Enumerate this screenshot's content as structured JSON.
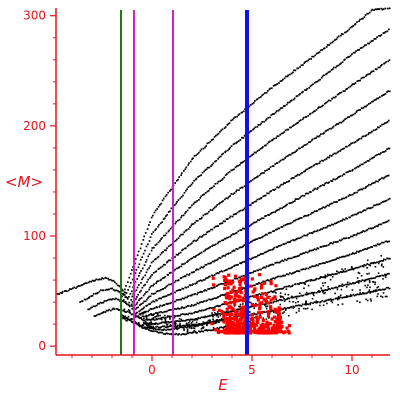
{
  "chart_data": {
    "type": "scatter",
    "title": "",
    "xlabel": "E",
    "ylabel": "<M>",
    "xlim": [
      -4.8,
      11.9
    ],
    "ylim": [
      -8,
      307
    ],
    "x_ticks": [
      0,
      5,
      10
    ],
    "x_tick_labels": [
      "0",
      "5",
      "10"
    ],
    "y_ticks": [
      0,
      100,
      200,
      300
    ],
    "y_tick_labels": [
      "0",
      "100",
      "200",
      "300"
    ],
    "grid": false,
    "legend": "none",
    "colors": {
      "axis": "#e8141b",
      "points": "#000000",
      "highlight": "#ff0000",
      "line_green": "#1a7a1a",
      "line_magenta": "#cc22cc",
      "line_blue": "#1010e8"
    },
    "vertical_lines": [
      {
        "x": -1.55,
        "color": "#1a7a1a",
        "width": 2
      },
      {
        "x": -0.9,
        "color": "#cc22cc",
        "width": 2
      },
      {
        "x": 1.05,
        "color": "#cc22cc",
        "width": 2
      },
      {
        "x": 4.75,
        "color": "#1010e8",
        "width": 4
      }
    ],
    "curves": [
      {
        "points": [
          [
            -1.5,
            45
          ],
          [
            0,
            118
          ],
          [
            2,
            170
          ],
          [
            4,
            205
          ],
          [
            6,
            235
          ],
          [
            8,
            262
          ],
          [
            10,
            290
          ],
          [
            11,
            305
          ],
          [
            11.9,
            307
          ]
        ]
      },
      {
        "points": [
          [
            -1.4,
            42
          ],
          [
            0,
            102
          ],
          [
            2,
            148
          ],
          [
            4,
            182
          ],
          [
            6,
            210
          ],
          [
            8,
            237
          ],
          [
            10,
            265
          ],
          [
            11.9,
            288
          ]
        ]
      },
      {
        "points": [
          [
            -1.3,
            40
          ],
          [
            0,
            88
          ],
          [
            2,
            128
          ],
          [
            4,
            160
          ],
          [
            6,
            187
          ],
          [
            8,
            212
          ],
          [
            10,
            237
          ],
          [
            11.9,
            260
          ]
        ]
      },
      {
        "points": [
          [
            -1.2,
            38
          ],
          [
            0,
            76
          ],
          [
            2,
            110
          ],
          [
            4,
            138
          ],
          [
            6,
            163
          ],
          [
            8,
            187
          ],
          [
            10,
            210
          ],
          [
            11.9,
            232
          ]
        ]
      },
      {
        "points": [
          [
            -1.1,
            36
          ],
          [
            0,
            65
          ],
          [
            2,
            94
          ],
          [
            4,
            118
          ],
          [
            6,
            141
          ],
          [
            8,
            163
          ],
          [
            10,
            184
          ],
          [
            11.9,
            205
          ]
        ]
      },
      {
        "points": [
          [
            -1.0,
            34
          ],
          [
            0,
            55
          ],
          [
            2,
            80
          ],
          [
            4,
            101
          ],
          [
            6,
            121
          ],
          [
            8,
            141
          ],
          [
            10,
            160
          ],
          [
            11.9,
            180
          ]
        ]
      },
      {
        "points": [
          [
            -0.9,
            32
          ],
          [
            0,
            47
          ],
          [
            2,
            67
          ],
          [
            4,
            86
          ],
          [
            6,
            104
          ],
          [
            8,
            121
          ],
          [
            10,
            138
          ],
          [
            11.9,
            156
          ]
        ]
      },
      {
        "points": [
          [
            -0.8,
            30
          ],
          [
            0,
            40
          ],
          [
            2,
            56
          ],
          [
            4,
            72
          ],
          [
            6,
            88
          ],
          [
            8,
            103
          ],
          [
            10,
            118
          ],
          [
            11.9,
            134
          ]
        ]
      },
      {
        "points": [
          [
            -0.7,
            28
          ],
          [
            0,
            34
          ],
          [
            2,
            46
          ],
          [
            4,
            60
          ],
          [
            6,
            74
          ],
          [
            8,
            87
          ],
          [
            10,
            100
          ],
          [
            11.9,
            114
          ]
        ]
      },
      {
        "points": [
          [
            -0.6,
            26
          ],
          [
            0,
            29
          ],
          [
            2,
            37
          ],
          [
            4,
            49
          ],
          [
            6,
            61
          ],
          [
            8,
            72
          ],
          [
            10,
            84
          ],
          [
            11.9,
            96
          ]
        ]
      },
      {
        "points": [
          [
            -0.5,
            24
          ],
          [
            0,
            24
          ],
          [
            2,
            30
          ],
          [
            4,
            40
          ],
          [
            6,
            50
          ],
          [
            8,
            60
          ],
          [
            10,
            70
          ],
          [
            11.9,
            80
          ]
        ]
      },
      {
        "points": [
          [
            -0.4,
            22
          ],
          [
            0,
            20
          ],
          [
            2,
            24
          ],
          [
            4,
            32
          ],
          [
            6,
            40
          ],
          [
            8,
            48
          ],
          [
            10,
            57
          ],
          [
            11.9,
            66
          ]
        ]
      },
      {
        "points": [
          [
            -0.3,
            20
          ],
          [
            0,
            17
          ],
          [
            2,
            19
          ],
          [
            4,
            26
          ],
          [
            6,
            32
          ],
          [
            8,
            39
          ],
          [
            10,
            46
          ],
          [
            11.9,
            53
          ]
        ]
      },
      {
        "points": [
          [
            -4.8,
            47
          ],
          [
            -4,
            52
          ],
          [
            -3,
            59
          ],
          [
            -2.4,
            62
          ],
          [
            -2,
            60
          ],
          [
            -1.6,
            54
          ],
          [
            -1.3,
            48
          ]
        ]
      },
      {
        "points": [
          [
            -3.6,
            40
          ],
          [
            -3,
            46
          ],
          [
            -2.5,
            51
          ],
          [
            -2,
            52
          ],
          [
            -1.6,
            49
          ],
          [
            -1.2,
            44
          ]
        ]
      },
      {
        "points": [
          [
            -3.2,
            33
          ],
          [
            -2.7,
            38
          ],
          [
            -2.2,
            42
          ],
          [
            -1.8,
            43
          ],
          [
            -1.4,
            40
          ],
          [
            -1.0,
            36
          ]
        ]
      },
      {
        "points": [
          [
            -2.9,
            27
          ],
          [
            -2.4,
            31
          ],
          [
            -1.9,
            34
          ],
          [
            -1.5,
            33
          ],
          [
            -1.1,
            30
          ],
          [
            -0.7,
            27
          ]
        ]
      },
      {
        "points": [
          [
            -1.5,
            28
          ],
          [
            -1,
            22
          ],
          [
            -0.5,
            17
          ],
          [
            0,
            14
          ],
          [
            0.5,
            12
          ],
          [
            1,
            11
          ],
          [
            1.5,
            11
          ],
          [
            2,
            12
          ],
          [
            3,
            15
          ],
          [
            4,
            19
          ]
        ]
      },
      {
        "points": [
          [
            -1.2,
            25
          ],
          [
            -0.6,
            19
          ],
          [
            0,
            16
          ],
          [
            0.6,
            15
          ],
          [
            1.2,
            16
          ],
          [
            2,
            18
          ],
          [
            3,
            21
          ],
          [
            4,
            25
          ]
        ]
      }
    ],
    "highlight_cluster": {
      "x_range": [
        2.9,
        7.0
      ],
      "y_range": [
        12,
        65
      ],
      "peaks": [
        [
          4.0,
          60
        ],
        [
          5.4,
          65
        ]
      ]
    }
  }
}
